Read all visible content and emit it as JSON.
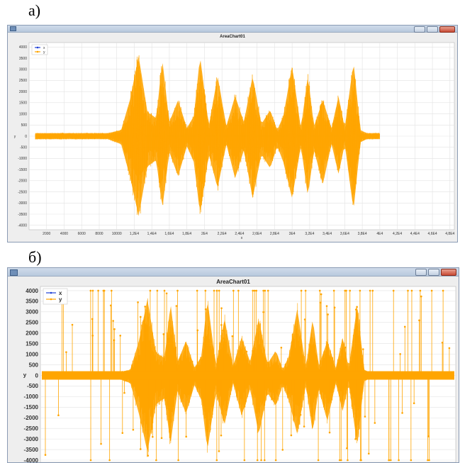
{
  "captions": {
    "a": "а)",
    "b": "б)"
  },
  "colors": {
    "series_x": "#1f3fd6",
    "series_y": "#ffa500",
    "plot_bg": "#ffffff",
    "grid": "#e2e2e2",
    "titlebar": "#c3d2e4"
  },
  "icons": {
    "app": "app-icon",
    "minimize": "minimize-icon",
    "maximize": "maximize-icon",
    "close": "close-icon"
  },
  "chart_data": [
    {
      "id": "a",
      "type": "line",
      "title": "AreaChart01",
      "ylabel": "y",
      "xlabel": "x",
      "ylim": [
        -4200,
        4200
      ],
      "xlim": [
        0,
        48500
      ],
      "yticks": [
        4000,
        3500,
        3000,
        2500,
        2000,
        1500,
        1000,
        500,
        0,
        -500,
        -1000,
        -1500,
        -2000,
        -2500,
        -3000,
        -3500,
        -4000
      ],
      "ytick_labels": [
        "4000",
        "3500",
        "3000",
        "2500",
        "2000",
        "1500",
        "1000",
        "500",
        "0",
        "-500",
        "-1000",
        "-1500",
        "-2000",
        "-2500",
        "-3000",
        "-3500",
        "-4000"
      ],
      "xticks": [
        2000,
        4000,
        6000,
        8000,
        10000,
        12000,
        14000,
        16000,
        18000,
        20000,
        22000,
        24000,
        26000,
        28000,
        30000,
        32000,
        34000,
        36000,
        38000,
        40000,
        42000,
        44000,
        46000,
        48000
      ],
      "xtick_labels": [
        "2000",
        "4000",
        "6000",
        "8000",
        "10000",
        "1,2E4",
        "1,4E4",
        "1,6E4",
        "1,8E4",
        "2E4",
        "2,2E4",
        "2,4E4",
        "2,6E4",
        "2,8E4",
        "3E4",
        "3,2E4",
        "3,4E4",
        "3,6E4",
        "3,8E4",
        "4E4",
        "4,2E4",
        "4,4E4",
        "4,6E4",
        "4,8E4"
      ],
      "legend": {
        "placement": "top-left",
        "entries": [
          "x",
          "y"
        ]
      },
      "grid": true,
      "series": [
        {
          "name": "x",
          "values": []
        },
        {
          "name": "y",
          "envelope": {
            "x": [
              0,
              9000,
              10500,
              11500,
              12500,
              13500,
              14500,
              15200,
              16000,
              17000,
              18000,
              18800,
              19500,
              20500,
              21500,
              22500,
              23500,
              24500,
              25500,
              26500,
              27500,
              28300,
              29000,
              30000,
              31000,
              31800,
              32500,
              33500,
              34500,
              35300,
              36000,
              37000,
              37800,
              38500,
              39300,
              40000,
              48000
            ],
            "upper": [
              150,
              150,
              300,
              1800,
              4000,
              1200,
              900,
              3800,
              700,
              1800,
              400,
              1000,
              4000,
              500,
              3000,
              500,
              2000,
              700,
              3000,
              600,
              1300,
              300,
              1000,
              3500,
              400,
              3000,
              500,
              1800,
              400,
              2000,
              400,
              3700,
              300,
              150,
              150,
              150,
              150
            ],
            "lower": [
              -150,
              -150,
              -400,
              -2000,
              -4000,
              -1500,
              -1200,
              -3600,
              -800,
              -2000,
              -500,
              -1300,
              -3900,
              -900,
              -2600,
              -400,
              -2100,
              -700,
              -3100,
              -900,
              -1600,
              -500,
              -1300,
              -3100,
              -500,
              -3000,
              -700,
              -2400,
              -400,
              -1900,
              -400,
              -3700,
              -300,
              -150,
              -150,
              -150,
              -150
            ]
          }
        }
      ]
    },
    {
      "id": "b",
      "type": "line",
      "title": "AreaChart01",
      "ylabel": "y",
      "xlabel": "",
      "ylim": [
        -4100,
        4200
      ],
      "xlim": [
        0,
        48500
      ],
      "yticks": [
        4000,
        3500,
        3000,
        2500,
        2000,
        1500,
        1000,
        500,
        0,
        -500,
        -1000,
        -1500,
        -2000,
        -2500,
        -3000,
        -3500,
        -4000
      ],
      "ytick_labels": [
        "4000",
        "3500",
        "3000",
        "2500",
        "2000",
        "1500",
        "1000",
        "500",
        "0",
        "-500",
        "-1000",
        "-1500",
        "-2000",
        "-2500",
        "-3000",
        "-3500",
        "-4000"
      ],
      "xticks": [],
      "xtick_labels": [],
      "legend": {
        "placement": "top-left",
        "entries": [
          "x",
          "y"
        ]
      },
      "grid": true,
      "outliers": "random vertical spikes to ±4000 across the whole range",
      "series": [
        {
          "name": "x",
          "values": []
        },
        {
          "name": "y",
          "envelope": {
            "x": [
              0,
              9000,
              10500,
              11500,
              12500,
              13500,
              14500,
              15200,
              16000,
              17000,
              18000,
              18800,
              19500,
              20500,
              21500,
              22500,
              23500,
              24500,
              25500,
              26500,
              27500,
              28300,
              29000,
              30000,
              31000,
              31800,
              32500,
              33500,
              34500,
              35300,
              36000,
              37000,
              37800,
              38500,
              39300,
              40000,
              48000
            ],
            "upper": [
              150,
              150,
              300,
              1800,
              4000,
              1200,
              900,
              3800,
              700,
              1800,
              400,
              1000,
              4000,
              500,
              3000,
              500,
              2000,
              700,
              3000,
              600,
              1300,
              300,
              1000,
              3500,
              400,
              3000,
              500,
              1800,
              400,
              2000,
              400,
              3700,
              300,
              150,
              150,
              150,
              150
            ],
            "lower": [
              -150,
              -150,
              -400,
              -2000,
              -4000,
              -1500,
              -1200,
              -3600,
              -800,
              -2000,
              -500,
              -1300,
              -3900,
              -900,
              -2600,
              -400,
              -2100,
              -700,
              -3100,
              -900,
              -1600,
              -500,
              -1300,
              -3100,
              -500,
              -3000,
              -700,
              -2400,
              -400,
              -1900,
              -400,
              -3700,
              -300,
              -150,
              -150,
              -150,
              -150
            ]
          }
        }
      ]
    }
  ]
}
